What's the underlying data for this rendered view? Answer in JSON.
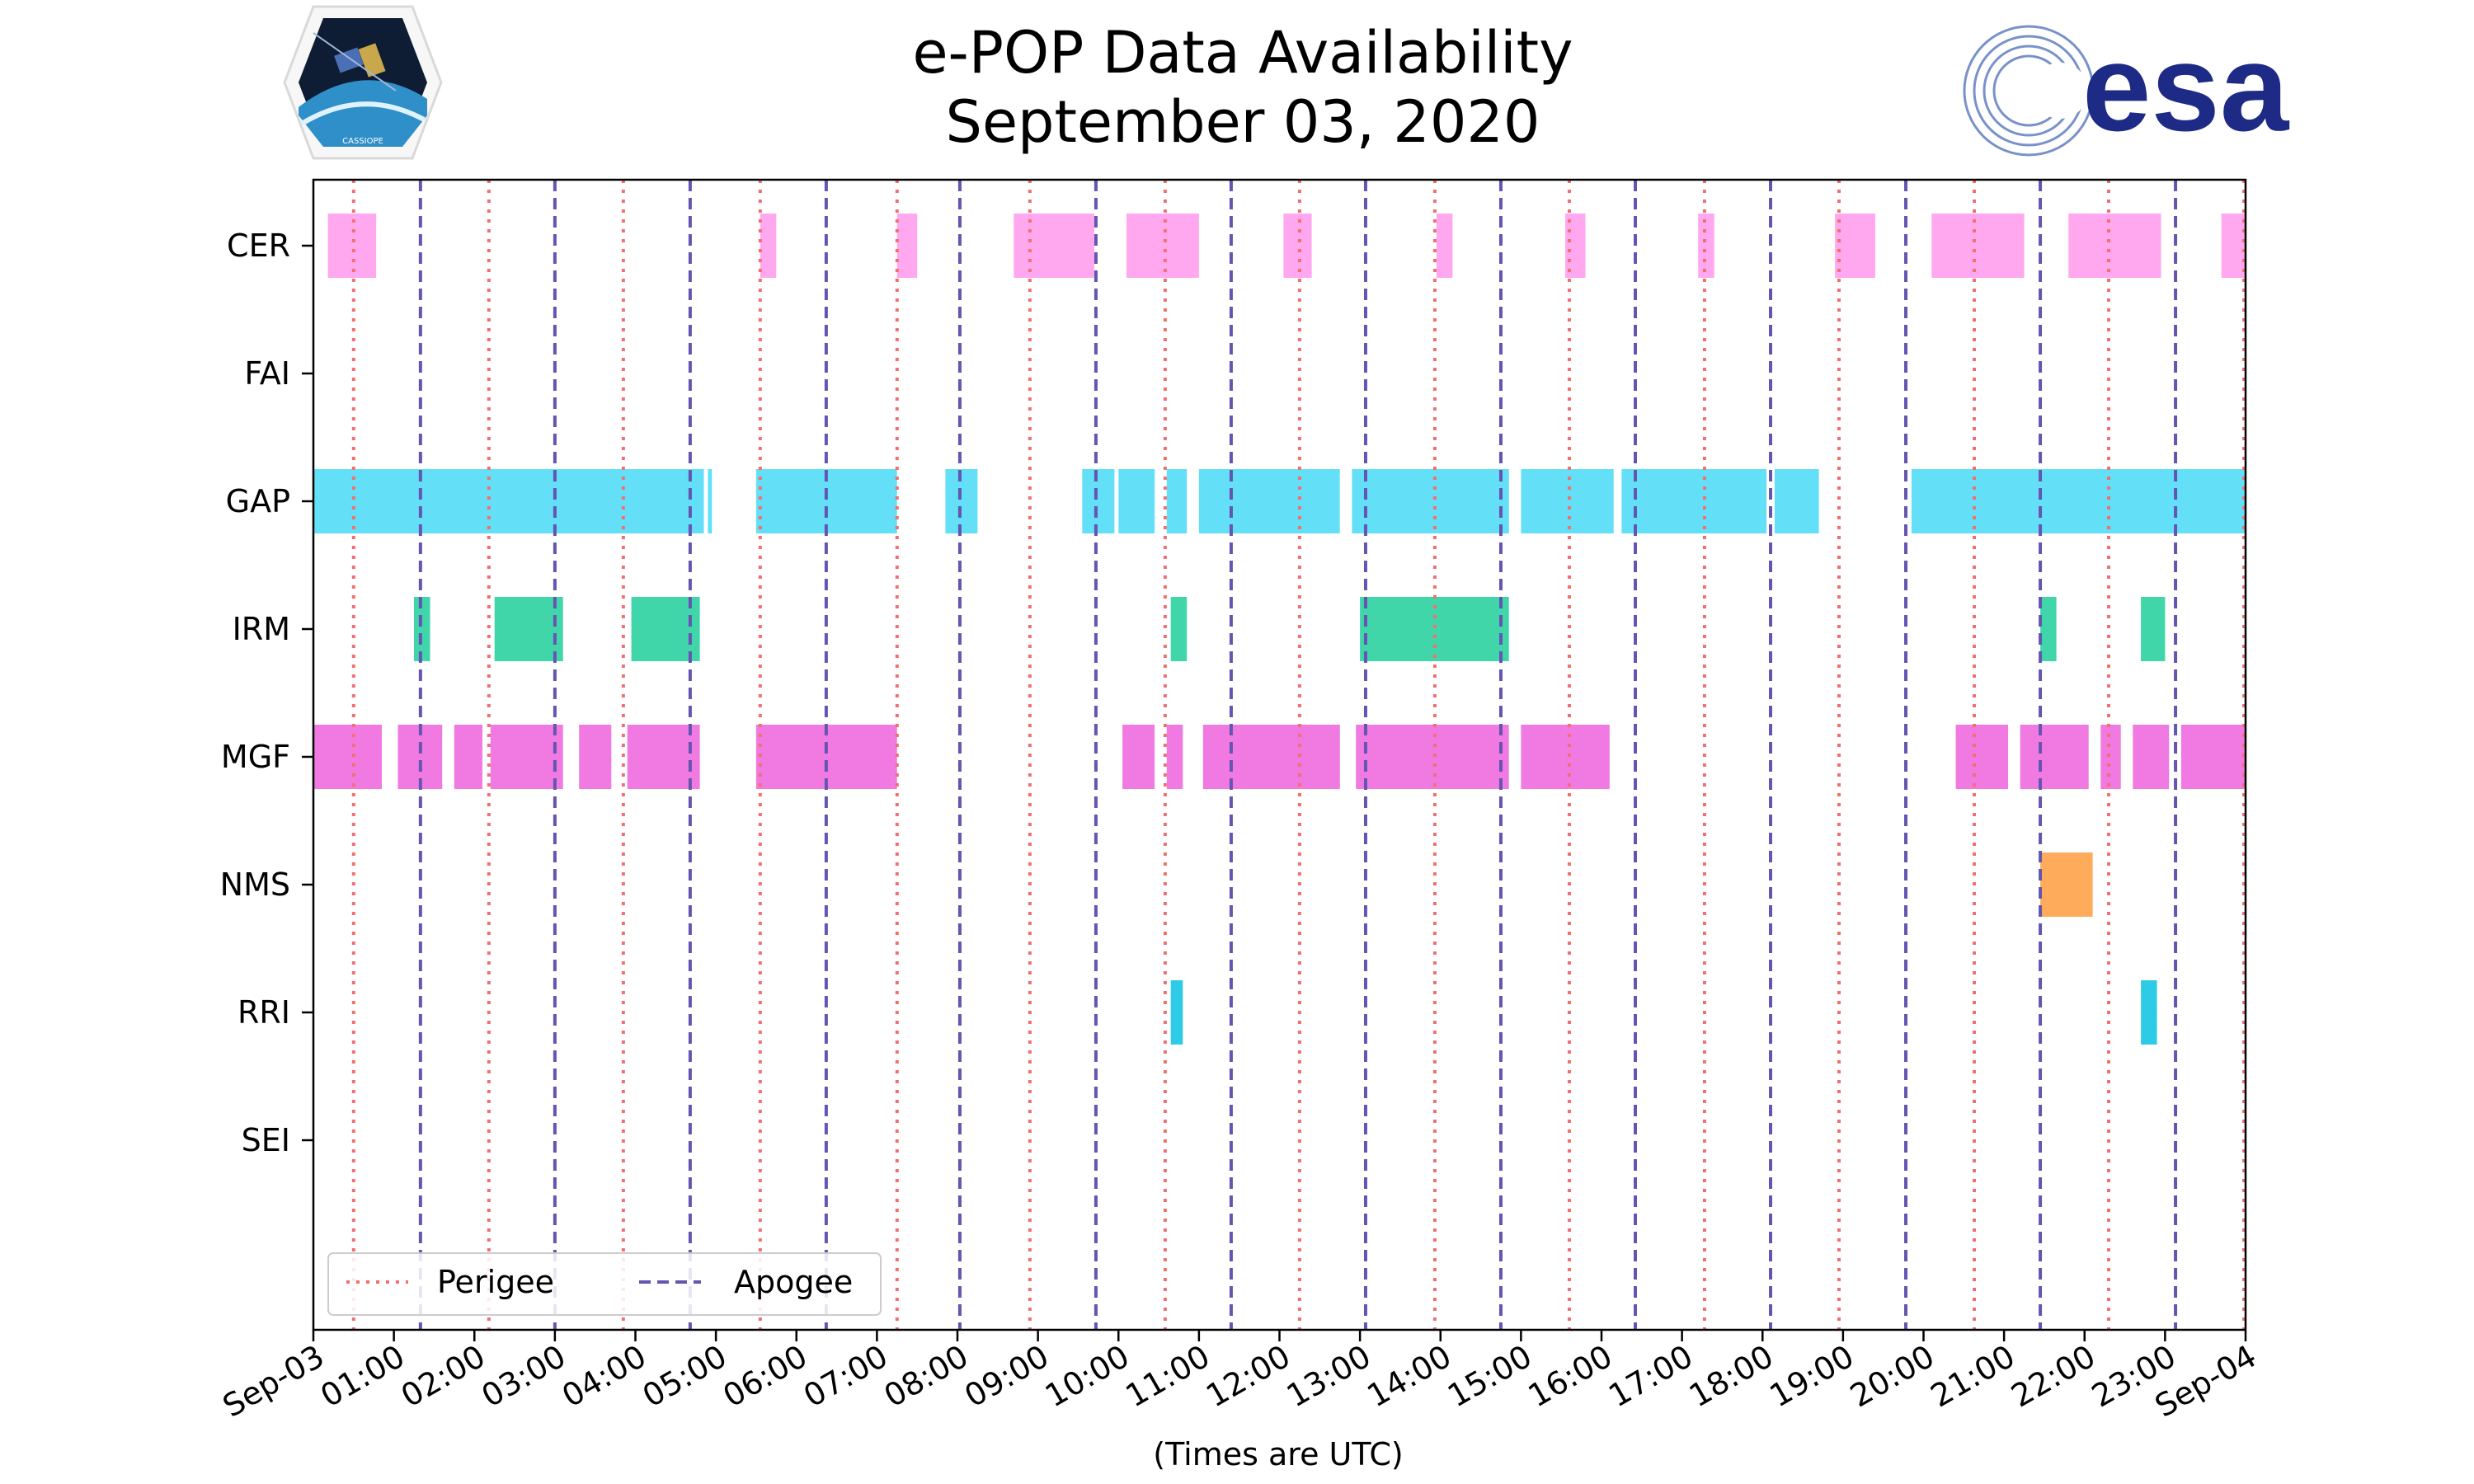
{
  "header": {
    "title_line1": "e-POP Data Availability",
    "title_line2": "September 03, 2020",
    "left_logo_text": "CASSIOPE",
    "right_logo_text": "esa"
  },
  "colors": {
    "CER": "#ffa8f0",
    "GAP": "#64dff8",
    "IRM": "#40d6aa",
    "MGF": "#f07ae2",
    "NMS": "#ffab5c",
    "RRI": "#2ecbe6",
    "perigee": "#f07070",
    "apogee": "#6455b0"
  },
  "chart_data": {
    "type": "timeline",
    "title": "e-POP Data Availability September 03, 2020",
    "xlabel": "(Times are UTC)",
    "xlim_hours": [
      0,
      24
    ],
    "x_tick_labels": [
      "Sep-03",
      "01:00",
      "02:00",
      "03:00",
      "04:00",
      "05:00",
      "06:00",
      "07:00",
      "08:00",
      "09:00",
      "10:00",
      "11:00",
      "12:00",
      "13:00",
      "14:00",
      "15:00",
      "16:00",
      "17:00",
      "18:00",
      "19:00",
      "20:00",
      "21:00",
      "22:00",
      "23:00",
      "Sep-04"
    ],
    "instruments": [
      "CER",
      "FAI",
      "GAP",
      "IRM",
      "MGF",
      "NMS",
      "RRI",
      "SEI"
    ],
    "intervals": {
      "CER": [
        [
          0.18,
          0.78
        ],
        [
          5.55,
          5.75
        ],
        [
          7.25,
          7.5
        ],
        [
          8.7,
          9.7
        ],
        [
          10.1,
          11.0
        ],
        [
          12.05,
          12.4
        ],
        [
          13.95,
          14.15
        ],
        [
          15.55,
          15.8
        ],
        [
          17.2,
          17.4
        ],
        [
          18.9,
          19.4
        ],
        [
          20.1,
          21.25
        ],
        [
          21.8,
          22.95
        ],
        [
          23.7,
          24.0
        ]
      ],
      "FAI": [],
      "GAP": [
        [
          0.0,
          4.85
        ],
        [
          4.9,
          4.95
        ],
        [
          5.5,
          7.25
        ],
        [
          7.85,
          8.25
        ],
        [
          9.55,
          9.95
        ],
        [
          10.0,
          10.45
        ],
        [
          10.6,
          10.85
        ],
        [
          11.0,
          12.75
        ],
        [
          12.9,
          14.85
        ],
        [
          15.0,
          16.15
        ],
        [
          16.25,
          18.05
        ],
        [
          18.15,
          18.7
        ],
        [
          19.85,
          24.0
        ]
      ],
      "IRM": [
        [
          1.25,
          1.45
        ],
        [
          2.25,
          3.1
        ],
        [
          3.95,
          4.8
        ],
        [
          10.65,
          10.85
        ],
        [
          13.0,
          14.85
        ],
        [
          21.45,
          21.65
        ],
        [
          22.7,
          23.0
        ]
      ],
      "MGF": [
        [
          0.0,
          0.85
        ],
        [
          1.05,
          1.6
        ],
        [
          1.75,
          2.1
        ],
        [
          2.2,
          3.1
        ],
        [
          3.3,
          3.7
        ],
        [
          3.9,
          4.8
        ],
        [
          5.5,
          7.25
        ],
        [
          10.05,
          10.45
        ],
        [
          10.6,
          10.8
        ],
        [
          11.05,
          12.75
        ],
        [
          12.95,
          14.85
        ],
        [
          15.0,
          16.1
        ],
        [
          20.4,
          21.05
        ],
        [
          21.2,
          22.05
        ],
        [
          22.2,
          22.45
        ],
        [
          22.6,
          23.05
        ],
        [
          23.2,
          24.0
        ]
      ],
      "NMS": [
        [
          21.45,
          22.1
        ]
      ],
      "RRI": [
        [
          10.65,
          10.8
        ],
        [
          22.7,
          22.9
        ]
      ],
      "SEI": []
    },
    "perigee_hours": [
      0.5,
      2.18,
      3.85,
      5.55,
      7.25,
      8.9,
      10.58,
      12.25,
      13.93,
      15.6,
      17.28,
      18.95,
      20.63,
      22.3,
      23.98
    ],
    "apogee_hours": [
      1.33,
      3.0,
      4.68,
      6.37,
      8.03,
      9.72,
      11.4,
      13.07,
      14.75,
      16.42,
      18.1,
      19.78,
      21.45,
      23.13
    ],
    "legend": {
      "position": "lower-left",
      "entries": [
        "Perigee",
        "Apogee"
      ]
    }
  }
}
